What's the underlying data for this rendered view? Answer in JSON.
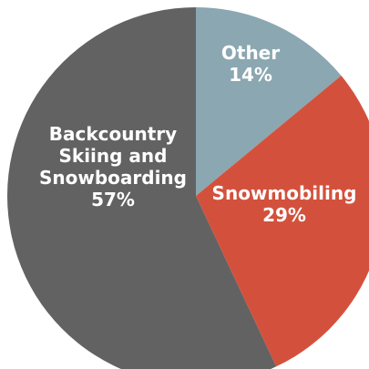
{
  "chart_data": {
    "type": "pie",
    "slices": [
      {
        "label_lines": [
          "Other"
        ],
        "value": 14,
        "value_label": "14%",
        "color": "#8ba7b1"
      },
      {
        "label_lines": [
          "Snowmobiling"
        ],
        "value": 29,
        "value_label": "29%",
        "color": "#d3513c"
      },
      {
        "label_lines": [
          "Backcountry",
          "Skiing and",
          "Snowboarding"
        ],
        "value": 57,
        "value_label": "57%",
        "color": "#626262"
      }
    ],
    "start_angle_deg": 0,
    "direction": "clockwise"
  }
}
